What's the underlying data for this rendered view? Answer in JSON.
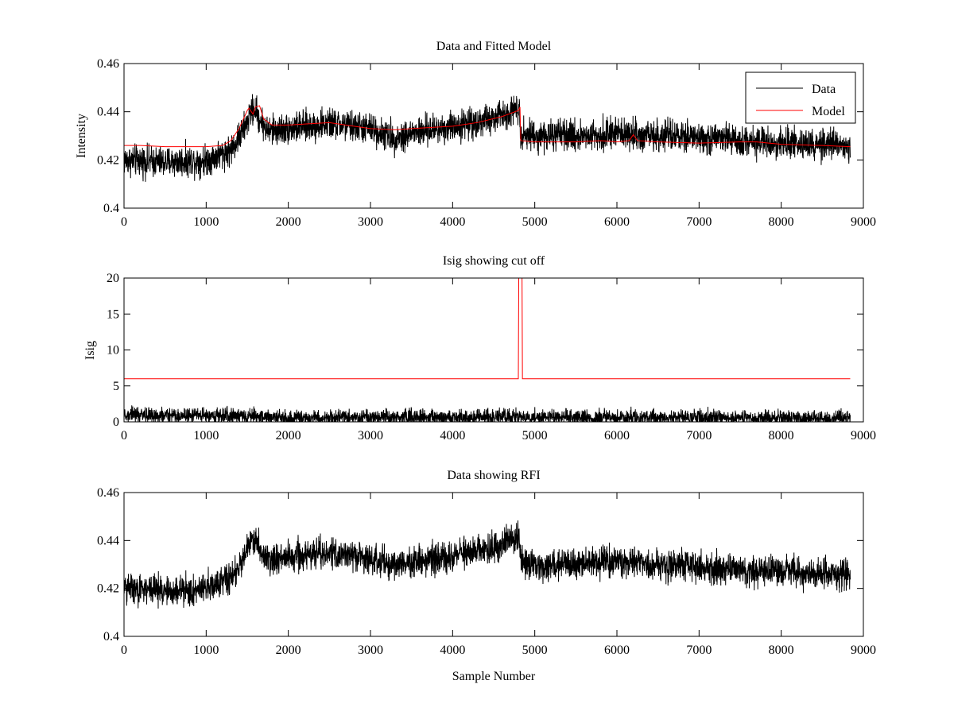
{
  "figure": {
    "background": "#ffffff"
  },
  "chart_data": [
    {
      "type": "line",
      "title": "Data and Fitted Model",
      "xlabel": "",
      "ylabel": "Intensity",
      "xlim": [
        0,
        9000
      ],
      "ylim": [
        0.4,
        0.46
      ],
      "xticks": [
        0,
        1000,
        2000,
        3000,
        4000,
        5000,
        6000,
        7000,
        8000,
        9000
      ],
      "yticks": [
        0.4,
        0.42,
        0.44,
        0.46
      ],
      "ytick_decimals": 2,
      "grid": false,
      "legend": {
        "position": "top-right"
      },
      "series": [
        {
          "name": "Data",
          "color": "#000000",
          "kind": "noisy",
          "noise_amplitude": 0.0095,
          "x": [
            0,
            500,
            1000,
            1300,
            1450,
            1550,
            1600,
            1650,
            1750,
            2000,
            2500,
            3000,
            3300,
            3500,
            4000,
            4500,
            4810,
            4830,
            5000,
            5500,
            6000,
            6500,
            7000,
            7500,
            8000,
            8500,
            8840
          ],
          "values": [
            0.42,
            0.419,
            0.42,
            0.424,
            0.432,
            0.44,
            0.441,
            0.437,
            0.432,
            0.433,
            0.435,
            0.433,
            0.429,
            0.431,
            0.434,
            0.437,
            0.442,
            0.431,
            0.43,
            0.43,
            0.431,
            0.43,
            0.429,
            0.428,
            0.427,
            0.426,
            0.426
          ]
        },
        {
          "name": "Model",
          "color": "#ff0000",
          "kind": "smooth",
          "x": [
            0,
            200,
            500,
            1000,
            1200,
            1300,
            1400,
            1500,
            1520,
            1570,
            1600,
            1650,
            1700,
            1800,
            2000,
            2500,
            3000,
            3300,
            3500,
            4000,
            4300,
            4600,
            4800,
            4820,
            4830,
            5000,
            5500,
            5800,
            6000,
            6150,
            6200,
            6250,
            6500,
            7000,
            7500,
            7700,
            8000,
            8500,
            8840
          ],
          "values": [
            0.426,
            0.426,
            0.4255,
            0.4255,
            0.426,
            0.428,
            0.433,
            0.4405,
            0.4415,
            0.439,
            0.442,
            0.4425,
            0.437,
            0.4345,
            0.4345,
            0.4355,
            0.433,
            0.4325,
            0.433,
            0.434,
            0.4355,
            0.438,
            0.4405,
            0.442,
            0.428,
            0.4275,
            0.4275,
            0.428,
            0.4275,
            0.428,
            0.4305,
            0.428,
            0.4275,
            0.427,
            0.4275,
            0.4275,
            0.4265,
            0.426,
            0.4255
          ]
        }
      ]
    },
    {
      "type": "line",
      "title": "Isig showing cut off",
      "xlabel": "",
      "ylabel": "Isig",
      "xlim": [
        0,
        9000
      ],
      "ylim": [
        0,
        20
      ],
      "xticks": [
        0,
        1000,
        2000,
        3000,
        4000,
        5000,
        6000,
        7000,
        8000,
        9000
      ],
      "yticks": [
        0,
        5,
        10,
        15,
        20
      ],
      "ytick_decimals": 0,
      "grid": false,
      "series": [
        {
          "color": "#000000",
          "kind": "halfnoise",
          "noise_amplitude": 1.6,
          "x": [
            0,
            1000,
            2000,
            3000,
            4000,
            5000,
            6000,
            7000,
            8000,
            8840
          ],
          "values": [
            0.9,
            0.9,
            0.6,
            0.6,
            0.6,
            0.7,
            0.6,
            0.6,
            0.5,
            0.5
          ]
        },
        {
          "color": "#ff0000",
          "kind": "smooth",
          "x": [
            0,
            4800,
            4805,
            4845,
            4850,
            8840
          ],
          "values": [
            6,
            6,
            20,
            20,
            6,
            6
          ]
        }
      ]
    },
    {
      "type": "line",
      "title": "Data showing RFI",
      "xlabel": "Sample Number",
      "ylabel": "",
      "xlim": [
        0,
        9000
      ],
      "ylim": [
        0.4,
        0.46
      ],
      "xticks": [
        0,
        1000,
        2000,
        3000,
        4000,
        5000,
        6000,
        7000,
        8000,
        9000
      ],
      "yticks": [
        0.4,
        0.42,
        0.44,
        0.46
      ],
      "ytick_decimals": 2,
      "grid": false,
      "series": [
        {
          "color": "#000000",
          "kind": "noisy",
          "noise_amplitude": 0.0095,
          "x": [
            0,
            500,
            1000,
            1300,
            1450,
            1550,
            1600,
            1650,
            1750,
            2000,
            2500,
            3000,
            3300,
            3500,
            4000,
            4500,
            4810,
            4830,
            5000,
            5500,
            6000,
            6500,
            7000,
            7500,
            8000,
            8500,
            8840
          ],
          "values": [
            0.42,
            0.419,
            0.42,
            0.424,
            0.432,
            0.44,
            0.441,
            0.437,
            0.432,
            0.433,
            0.435,
            0.433,
            0.429,
            0.431,
            0.434,
            0.437,
            0.442,
            0.431,
            0.43,
            0.43,
            0.431,
            0.43,
            0.429,
            0.428,
            0.427,
            0.426,
            0.426
          ]
        }
      ]
    }
  ]
}
